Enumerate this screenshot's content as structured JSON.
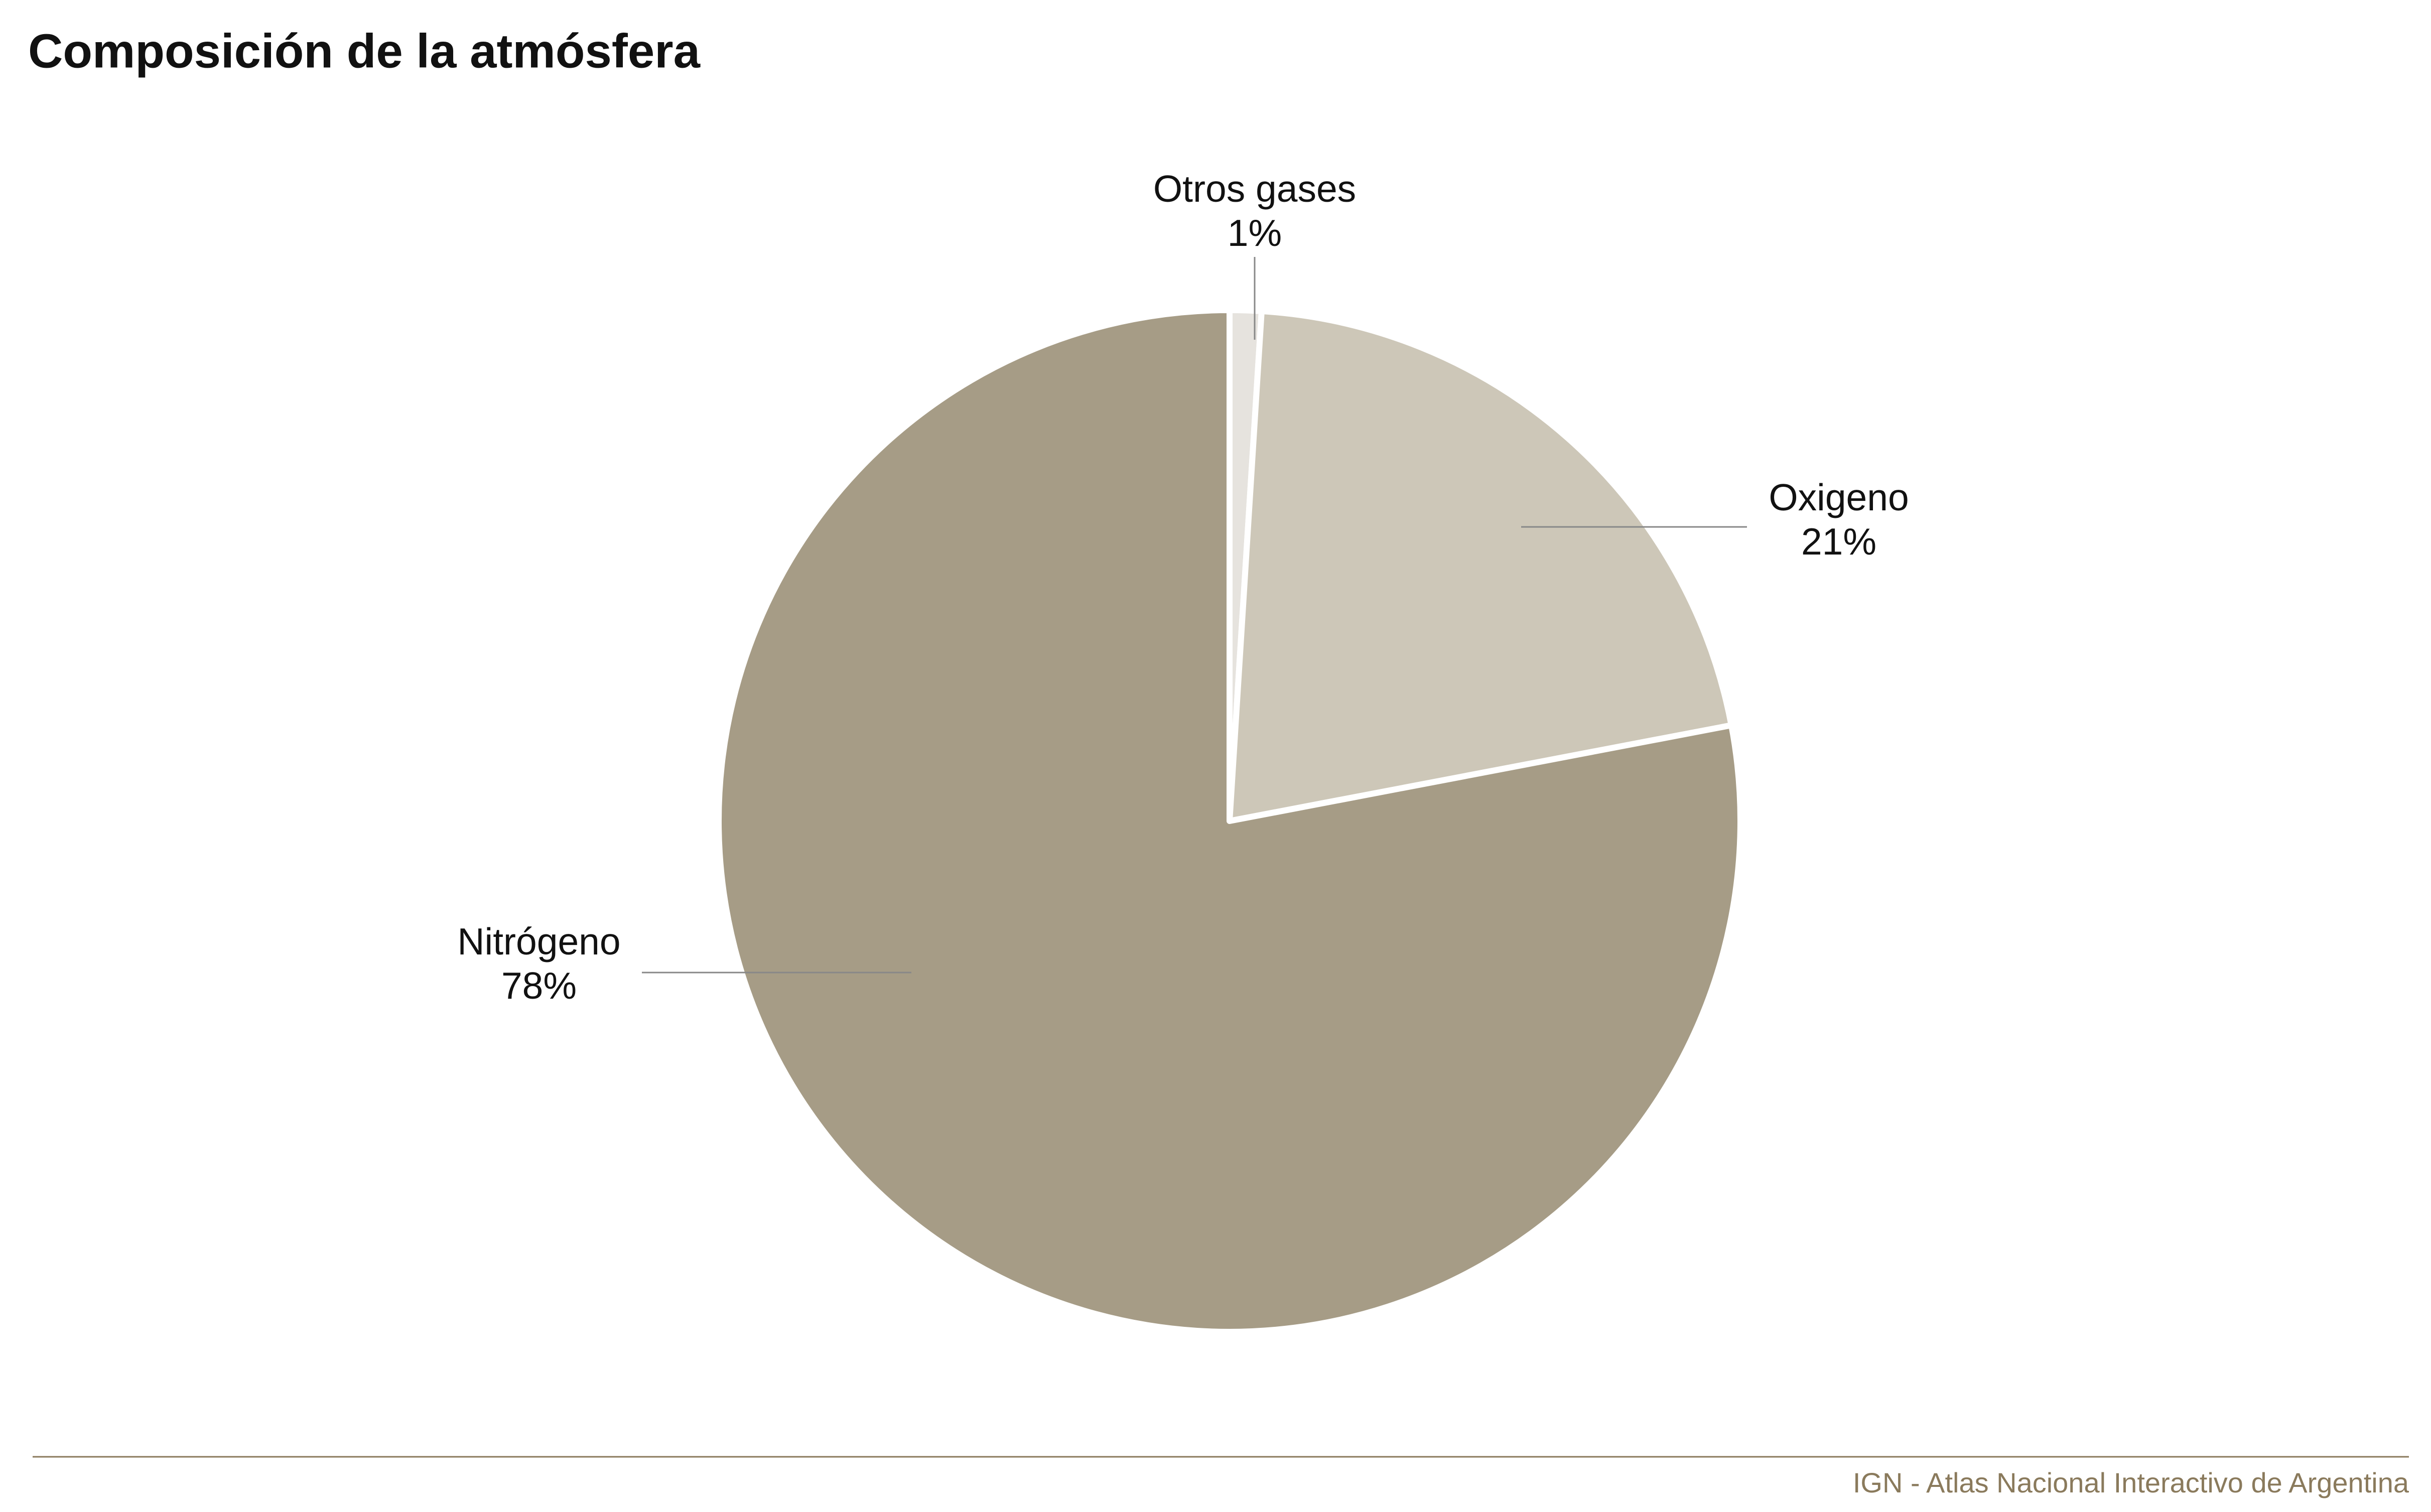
{
  "chart_data": {
    "type": "pie",
    "title": "Composición de la atmósfera",
    "categories": [
      "Otros gases",
      "Oxigeno",
      "Nitrógeno"
    ],
    "values": [
      1,
      21,
      78
    ],
    "value_labels": [
      "1%",
      "21%",
      "78%"
    ],
    "colors": [
      "#e6e3de",
      "#cdc7b8",
      "#a69c86"
    ],
    "source": "IGN - Atlas Nacional Interactivo de Argentina"
  }
}
